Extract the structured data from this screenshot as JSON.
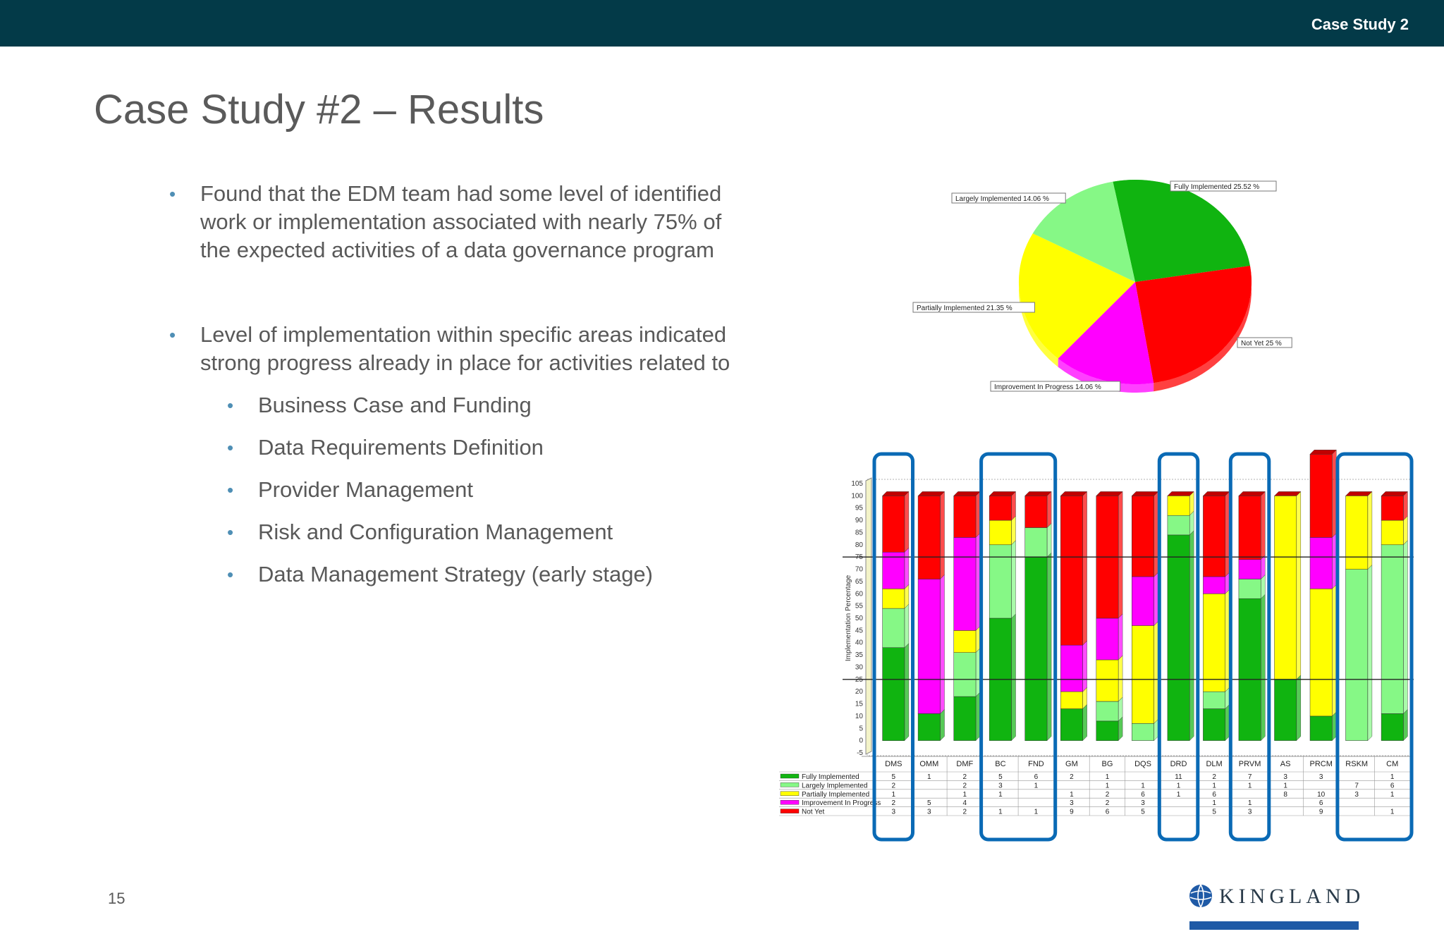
{
  "header": {
    "label": "Case Study 2"
  },
  "slide": {
    "title": "Case Study #2 – Results",
    "bullets": [
      {
        "text": "Found that the EDM team had some level of identified work or implementation associated with nearly 75% of the expected activities of a data governance program"
      },
      {
        "text": "Level of implementation within specific areas indicated strong progress already in place for activities related to",
        "sub": [
          "Business Case and Funding",
          "Data Requirements Definition",
          "Provider Management",
          "Risk and Configuration Management",
          "Data Management Strategy (early stage)"
        ]
      }
    ],
    "page_number": "15",
    "logo_text": "KINGLAND"
  },
  "colors": {
    "header_bg": "#033a48",
    "fully": "#10b410",
    "largely": "#86f886",
    "partially": "#ffff00",
    "progress": "#ff00ff",
    "notyet": "#ff0000",
    "highlight": "#0a6ab5"
  },
  "chart_data": [
    {
      "type": "pie",
      "slices": [
        {
          "label": "Fully Implemented 25.52 %",
          "value": 25.52,
          "color": "#10b410"
        },
        {
          "label": "Not Yet 25 %",
          "value": 25.0,
          "color": "#ff0000"
        },
        {
          "label": "Improvement In Progress 14.06 %",
          "value": 14.06,
          "color": "#ff00ff"
        },
        {
          "label": "Partially Implemented 21.35 %",
          "value": 21.35,
          "color": "#ffff00"
        },
        {
          "label": "Largely Implemented 14.06 %",
          "value": 14.06,
          "color": "#86f886"
        }
      ]
    },
    {
      "type": "bar",
      "stacked": true,
      "ylabel": "Implementation Percentage",
      "ylim": [
        -5,
        105
      ],
      "yticks": [
        "105",
        "100",
        "95",
        "90",
        "85",
        "80",
        "75",
        "70",
        "65",
        "60",
        "55",
        "50",
        "45",
        "40",
        "35",
        "30",
        "25",
        "20",
        "15",
        "10",
        "5",
        "0",
        "-5"
      ],
      "reference_lines": [
        75,
        25
      ],
      "categories": [
        "DMS",
        "OMM",
        "DMF",
        "BC",
        "FND",
        "GM",
        "BG",
        "DQS",
        "DRD",
        "DLM",
        "PRVM",
        "AS",
        "PRCM",
        "RSKM",
        "CM"
      ],
      "highlighted": [
        "DMS",
        "BC",
        "FND",
        "DRD",
        "PRVM",
        "RSKM",
        "CM"
      ],
      "series": [
        {
          "name": "Fully Implemented",
          "color": "#10b410",
          "percent": [
            38,
            11,
            18,
            50,
            75,
            13,
            8,
            0,
            84,
            13,
            58,
            25,
            10,
            0,
            11
          ],
          "counts": [
            "5",
            "1",
            "2",
            "5",
            "6",
            "2",
            "1",
            "",
            "11",
            "2",
            "7",
            "3",
            "3",
            "",
            "1"
          ]
        },
        {
          "name": "Largely Implemented",
          "color": "#86f886",
          "percent": [
            16,
            0,
            18,
            30,
            12,
            0,
            8,
            7,
            8,
            7,
            8,
            0,
            0,
            70,
            69
          ],
          "counts": [
            "2",
            "",
            "2",
            "3",
            "1",
            "",
            "1",
            "1",
            "1",
            "1",
            "1",
            "1",
            "",
            "7",
            "6"
          ]
        },
        {
          "name": "Partially Implemented",
          "color": "#ffff00",
          "percent": [
            8,
            0,
            9,
            10,
            0,
            7,
            17,
            40,
            8,
            40,
            0,
            75,
            52,
            30,
            10
          ],
          "counts": [
            "1",
            "",
            "1",
            "1",
            "",
            "1",
            "2",
            "6",
            "1",
            "6",
            "",
            "8",
            "10",
            "3",
            "1"
          ]
        },
        {
          "name": "Improvement In Progress",
          "color": "#ff00ff",
          "percent": [
            15,
            55,
            38,
            0,
            0,
            19,
            17,
            20,
            0,
            7,
            8,
            0,
            21,
            0,
            0
          ],
          "counts": [
            "2",
            "5",
            "4",
            "",
            "",
            "3",
            "2",
            "3",
            "",
            "1",
            "1",
            "",
            "6",
            "",
            ""
          ]
        },
        {
          "name": "Not Yet",
          "color": "#ff0000",
          "percent": [
            23,
            34,
            17,
            10,
            13,
            61,
            50,
            33,
            0,
            33,
            26,
            0,
            34,
            0,
            10
          ],
          "counts": [
            "3",
            "3",
            "2",
            "1",
            "1",
            "9",
            "6",
            "5",
            "",
            "5",
            "3",
            "",
            "9",
            "",
            "1"
          ]
        }
      ]
    }
  ]
}
